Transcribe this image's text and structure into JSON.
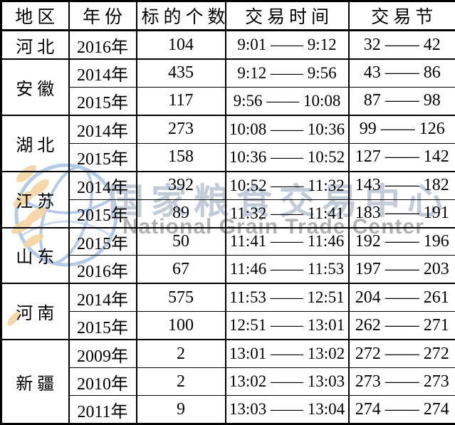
{
  "watermark": {
    "text_cn": "国家粮食交易中心",
    "text_en": "National Grain Trade Center",
    "colors": {
      "text_cn": "#c4cbd8",
      "text_en": "#b2b2b2",
      "globe": "#a6c3e3",
      "wheat": "#f5d4a1"
    }
  },
  "table": {
    "headers": [
      "地区",
      "年份",
      "标的个数",
      "交易时间",
      "交易节"
    ],
    "column_keys": [
      "region",
      "year",
      "lot_count",
      "trading_time",
      "trading_session"
    ],
    "groups": [
      {
        "region": "河北",
        "rows": [
          {
            "year": "2016年",
            "count": "104",
            "time": "9:01 —— 9:12",
            "session": "32 —— 42"
          }
        ]
      },
      {
        "region": "安徽",
        "rows": [
          {
            "year": "2014年",
            "count": "435",
            "time": "9:12 —— 9:56",
            "session": "43 —— 86"
          },
          {
            "year": "2015年",
            "count": "117",
            "time": "9:56 —— 10:08",
            "session": "87 —— 98"
          }
        ]
      },
      {
        "region": "湖北",
        "rows": [
          {
            "year": "2014年",
            "count": "273",
            "time": "10:08 —— 10:36",
            "session": "99 —— 126"
          },
          {
            "year": "2015年",
            "count": "158",
            "time": "10:36 —— 10:52",
            "session": "127 —— 142"
          }
        ]
      },
      {
        "region": "江苏",
        "rows": [
          {
            "year": "2014年",
            "count": "392",
            "time": "10:52 —— 11:32",
            "session": "143 —— 182"
          },
          {
            "year": "2015年",
            "count": "89",
            "time": "11:32 —— 11:41",
            "session": "183 —— 191"
          }
        ]
      },
      {
        "region": "山东",
        "rows": [
          {
            "year": "2015年",
            "count": "50",
            "time": "11:41 —— 11:46",
            "session": "192 —— 196"
          },
          {
            "year": "2016年",
            "count": "67",
            "time": "11:46 —— 11:53",
            "session": "197 —— 203"
          }
        ]
      },
      {
        "region": "河南",
        "rows": [
          {
            "year": "2014年",
            "count": "575",
            "time": "11:53 —— 12:51",
            "session": "204 —— 261"
          },
          {
            "year": "2015年",
            "count": "100",
            "time": "12:51 —— 13:01",
            "session": "262 —— 271"
          }
        ]
      },
      {
        "region": "新疆",
        "rows": [
          {
            "year": "2009年",
            "count": "2",
            "time": "13:01 —— 13:02",
            "session": "272 —— 272"
          },
          {
            "year": "2010年",
            "count": "2",
            "time": "13:02 —— 13:03",
            "session": "273 —— 273"
          },
          {
            "year": "2011年",
            "count": "9",
            "time": "13:03 —— 13:04",
            "session": "274 —— 274"
          }
        ]
      }
    ]
  }
}
